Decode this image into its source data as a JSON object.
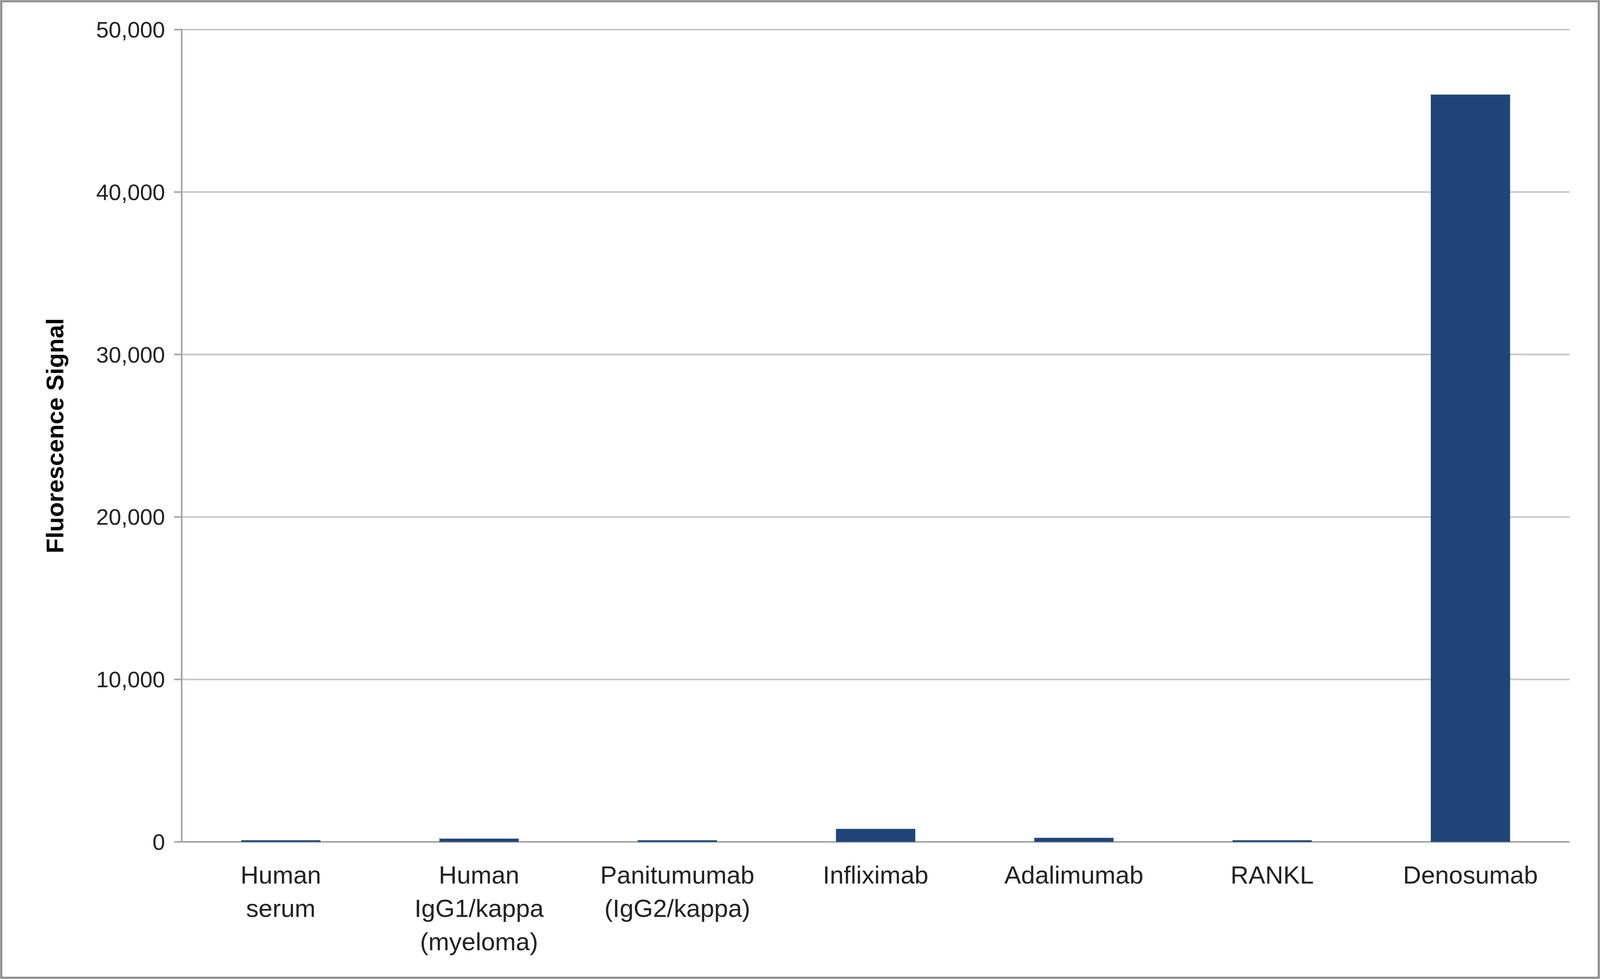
{
  "chart_data": {
    "type": "bar",
    "y_label": "Fluorescence Signal",
    "categories": [
      "Human serum",
      "Human IgG1/kappa (myeloma)",
      "Panitumumab (IgG2/kappa)",
      "Infliximab",
      "Adalimumab",
      "RANKL",
      "Denosumab"
    ],
    "values": [
      100,
      200,
      100,
      800,
      250,
      100,
      46000
    ],
    "color": "#1f4579",
    "ylim": [
      0,
      50000
    ],
    "yticks": [
      0,
      {
        "value": 10000,
        "label": "10,000"
      },
      {
        "value": 20000,
        "label": "20,000"
      },
      {
        "value": 30000,
        "label": "30,000"
      },
      {
        "value": 40000,
        "label": "40,000"
      },
      {
        "value": 50000,
        "label": "50,000"
      }
    ],
    "grid": true
  }
}
